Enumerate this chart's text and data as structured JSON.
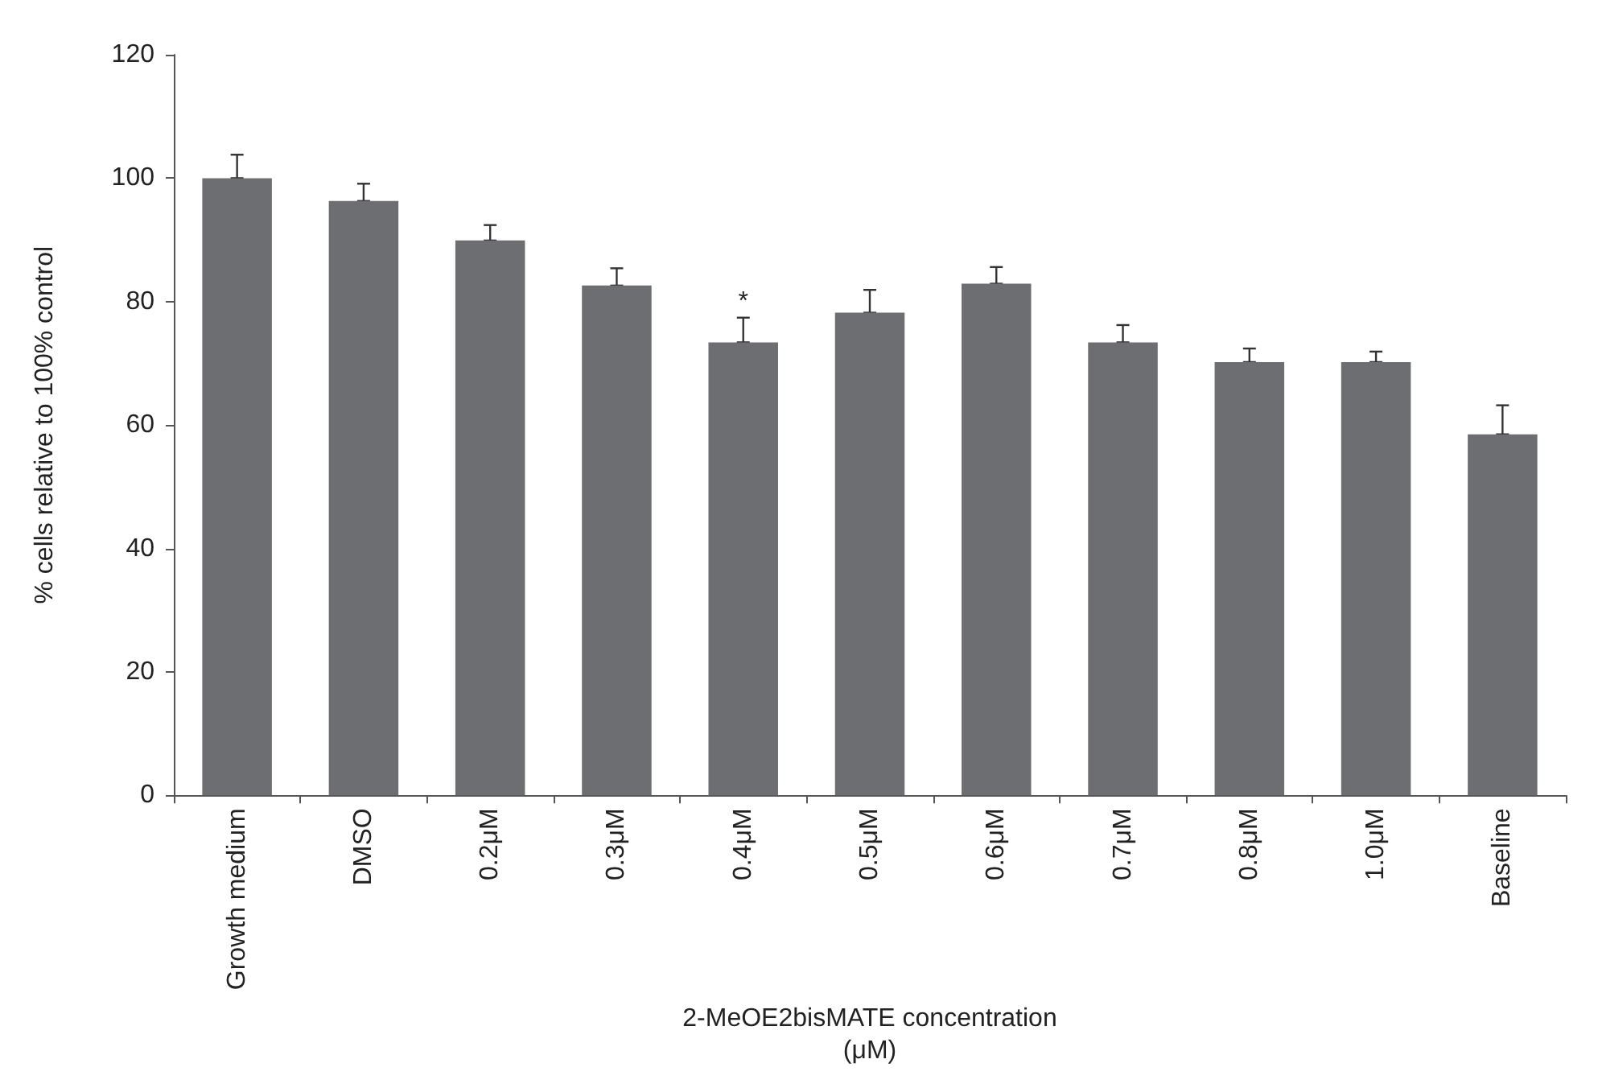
{
  "chart_data": {
    "type": "bar",
    "xlabel": "2-MeOE2bisMATE concentration\n(μM)",
    "ylabel": "% cells relative to 100% control",
    "categories": [
      "Growth medium",
      "DMSO",
      "0.2μM",
      "0.3μM",
      "0.4μM",
      "0.5μM",
      "0.6μM",
      "0.7μM",
      "0.8μM",
      "1.0μM",
      "Baseline"
    ],
    "values": [
      100,
      96.3,
      89.9,
      82.6,
      73.4,
      78.2,
      82.9,
      73.4,
      70.2,
      70.2,
      58.5
    ],
    "errors": [
      [
        100,
        103.8
      ],
      [
        96.3,
        99.1
      ],
      [
        89.9,
        92.4
      ],
      [
        82.6,
        85.4
      ],
      [
        73.4,
        77.4
      ],
      [
        78.2,
        81.9
      ],
      [
        82.9,
        85.6
      ],
      [
        73.4,
        76.2
      ],
      [
        70.2,
        72.4
      ],
      [
        70.2,
        71.9
      ],
      [
        58.5,
        63.2
      ]
    ],
    "color": "#6d6e71",
    "ylim": [
      0,
      120
    ],
    "yticks": [
      0,
      20,
      40,
      60,
      80,
      100,
      120
    ],
    "grid": false,
    "annotations": [
      {
        "text": "*",
        "x": "0.4μM",
        "y": 77.4
      }
    ]
  }
}
